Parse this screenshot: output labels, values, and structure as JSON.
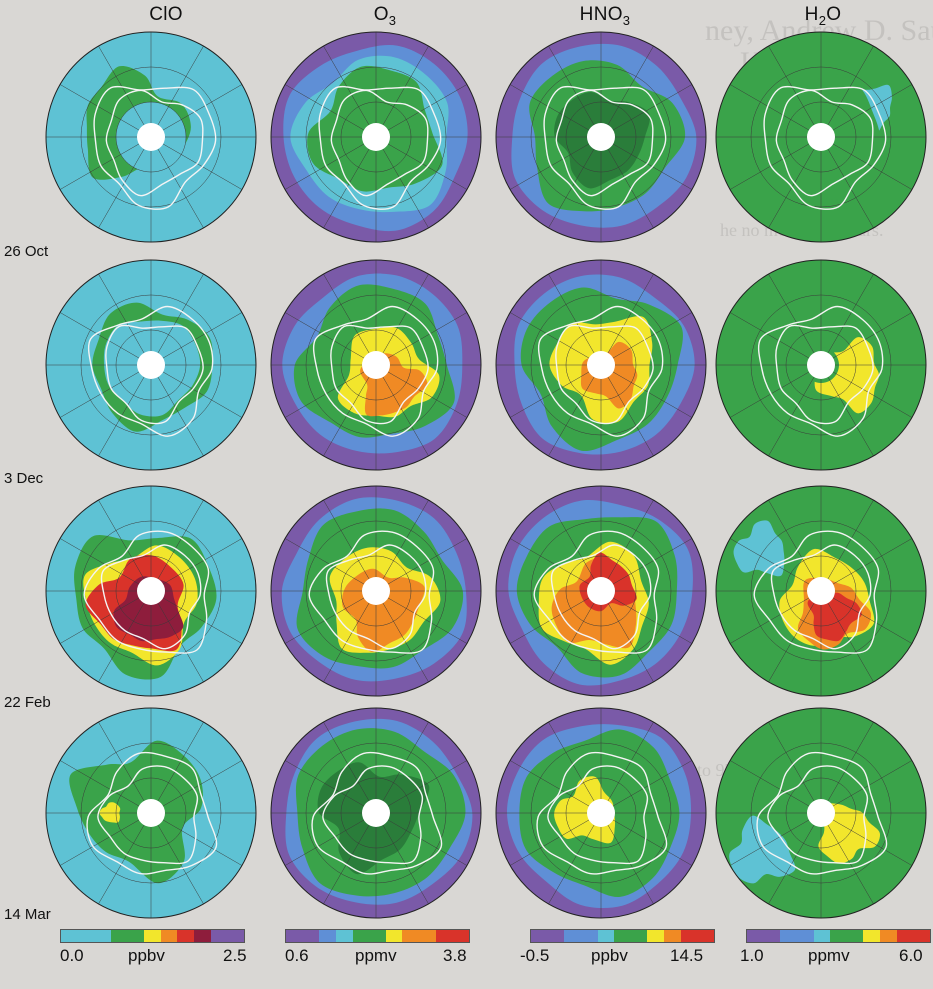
{
  "columns": [
    {
      "id": "clo",
      "label": "ClO",
      "sub": ""
    },
    {
      "id": "o3",
      "label": "O",
      "sub": "3"
    },
    {
      "id": "hno3",
      "label": "HNO",
      "sub": "3"
    },
    {
      "id": "h2o",
      "label": "H",
      "sub": "2",
      "suffix": "O"
    }
  ],
  "rows": [
    "26 Oct",
    "3 Dec",
    "22 Feb",
    "14 Mar"
  ],
  "colorbars": [
    {
      "min": "0.0",
      "unit": "ppbv",
      "max": "2.5"
    },
    {
      "min": "0.6",
      "unit": "ppmv",
      "max": "3.8"
    },
    {
      "min": "-0.5",
      "unit": "ppbv",
      "max": "14.5"
    },
    {
      "min": "1.0",
      "unit": "ppmv",
      "max": "6.0"
    }
  ],
  "colors": {
    "purple": "#7a5aa8",
    "blue": "#5f8fd6",
    "lightblue": "#5ec2d4",
    "green": "#3aa34a",
    "darkgreen": "#2a7d3a",
    "yellow": "#f2e62c",
    "orange": "#f08a24",
    "red": "#d9332a",
    "darkred": "#8e1d3c"
  }
}
